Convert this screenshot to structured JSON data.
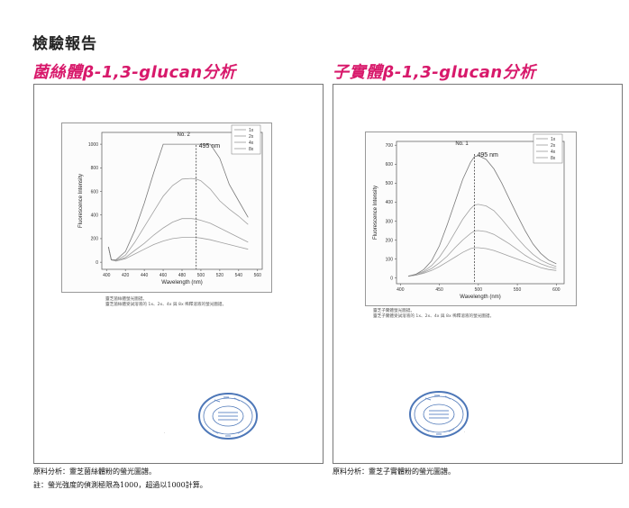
{
  "header": {
    "title": "檢驗報告"
  },
  "sections": [
    {
      "title": "菌絲體β-1,3-glucan分析",
      "chart_data": {
        "type": "line",
        "title": "No. 2",
        "annotation": "495 nm",
        "xlabel": "Wavelength (nm)",
        "ylabel": "Fluorescence Intensity",
        "xlim": [
          395,
          565
        ],
        "ylim": [
          -60,
          1100
        ],
        "x_ticks": [
          400,
          420,
          440,
          460,
          480,
          500,
          520,
          540,
          560
        ],
        "y_ticks": [
          0,
          200,
          400,
          600,
          800,
          1000
        ],
        "legend": "top-right",
        "series": [
          {
            "name": "1x",
            "x": [
              402,
              405,
              410,
              420,
              430,
              440,
              450,
              460,
              470,
              480,
              490,
              495,
              500,
              510,
              520,
              530,
              540,
              550
            ],
            "y": [
              130,
              20,
              10,
              30,
              70,
              110,
              150,
              180,
              200,
              210,
              210,
              210,
              205,
              190,
              170,
              150,
              130,
              110
            ]
          },
          {
            "name": "2x",
            "x": [
              402,
              405,
              410,
              420,
              430,
              440,
              450,
              460,
              470,
              480,
              490,
              495,
              500,
              510,
              520,
              530,
              540,
              550
            ],
            "y": [
              130,
              20,
              10,
              40,
              100,
              160,
              230,
              290,
              340,
              370,
              370,
              365,
              355,
              330,
              290,
              250,
              210,
              170
            ]
          },
          {
            "name": "4x",
            "x": [
              402,
              405,
              410,
              420,
              430,
              440,
              450,
              460,
              470,
              480,
              490,
              495,
              500,
              510,
              520,
              530,
              540,
              550
            ],
            "y": [
              130,
              20,
              15,
              60,
              170,
              300,
              430,
              560,
              650,
              705,
              710,
              705,
              690,
              620,
              520,
              450,
              390,
              320
            ]
          },
          {
            "name": "8x",
            "x": [
              402,
              405,
              410,
              420,
              430,
              440,
              450,
              460,
              470,
              480,
              490,
              495,
              500,
              510,
              520,
              530,
              540,
              550
            ],
            "y": [
              130,
              20,
              20,
              90,
              270,
              500,
              760,
              1000,
              1000,
              1000,
              1000,
              1000,
              1000,
              1000,
              880,
              660,
              520,
              380
            ]
          }
        ]
      },
      "caption_lines": [
        "靈芝菌絲體螢光圖譜。",
        "靈芝菌絲體受試溶液的 1x、2x、4x 與 8x 稀釋溶液的螢光圖譜。"
      ],
      "notes": [
        "原料分析：靈芝菌絲體粉的螢光圖譜。",
        "註：螢光強度的偵測極限為1000，超過以1000計算。"
      ]
    },
    {
      "title": "子實體β-1,3-glucan分析",
      "chart_data": {
        "type": "line",
        "title": "No. 1",
        "annotation": "495 nm",
        "xlabel": "Wavelength (nm)",
        "ylabel": "Fluorescence Intensity",
        "xlim": [
          395,
          610
        ],
        "ylim": [
          -30,
          720
        ],
        "x_ticks": [
          400,
          450,
          500,
          550,
          600
        ],
        "y_ticks": [
          0,
          100,
          200,
          300,
          400,
          500,
          600,
          700
        ],
        "legend": "top-right",
        "series": [
          {
            "name": "1x",
            "x": [
              410,
              420,
              430,
              440,
              450,
              460,
              470,
              480,
              490,
              495,
              500,
              510,
              520,
              530,
              540,
              550,
              560,
              570,
              580,
              590,
              600
            ],
            "y": [
              10,
              15,
              25,
              40,
              60,
              85,
              110,
              135,
              155,
              160,
              160,
              155,
              145,
              130,
              115,
              100,
              85,
              70,
              55,
              45,
              40
            ]
          },
          {
            "name": "2x",
            "x": [
              410,
              420,
              430,
              440,
              450,
              460,
              470,
              480,
              490,
              495,
              500,
              510,
              520,
              530,
              540,
              550,
              560,
              570,
              580,
              590,
              600
            ],
            "y": [
              10,
              15,
              30,
              50,
              80,
              115,
              160,
              200,
              235,
              248,
              250,
              245,
              230,
              205,
              180,
              150,
              120,
              95,
              75,
              60,
              50
            ]
          },
          {
            "name": "4x",
            "x": [
              410,
              420,
              430,
              440,
              450,
              460,
              470,
              480,
              490,
              495,
              500,
              510,
              520,
              530,
              540,
              550,
              560,
              570,
              580,
              590,
              600
            ],
            "y": [
              10,
              20,
              35,
              65,
              110,
              170,
              240,
              310,
              365,
              385,
              388,
              380,
              355,
              310,
              260,
              210,
              165,
              125,
              95,
              75,
              60
            ]
          },
          {
            "name": "8x",
            "x": [
              410,
              420,
              430,
              440,
              450,
              460,
              470,
              480,
              490,
              495,
              500,
              510,
              520,
              530,
              540,
              550,
              560,
              570,
              580,
              590,
              600
            ],
            "y": [
              10,
              20,
              45,
              90,
              170,
              280,
              400,
              520,
              610,
              640,
              645,
              625,
              575,
              500,
              415,
              330,
              250,
              180,
              130,
              95,
              75
            ]
          }
        ]
      },
      "caption_lines": [
        "靈芝子實體螢光圖譜。",
        "靈芝子實體受試溶液的 1x、2x、4x 與 8x 稀釋溶液的螢光圖譜。"
      ],
      "notes": [
        "原料分析：靈芝子實體粉的螢光圖譜。"
      ]
    }
  ],
  "colors": {
    "title": "#d8196b",
    "line": "#8a8a8a",
    "dashed": "#444444"
  },
  "stamp_icon": "official-seal-icon"
}
